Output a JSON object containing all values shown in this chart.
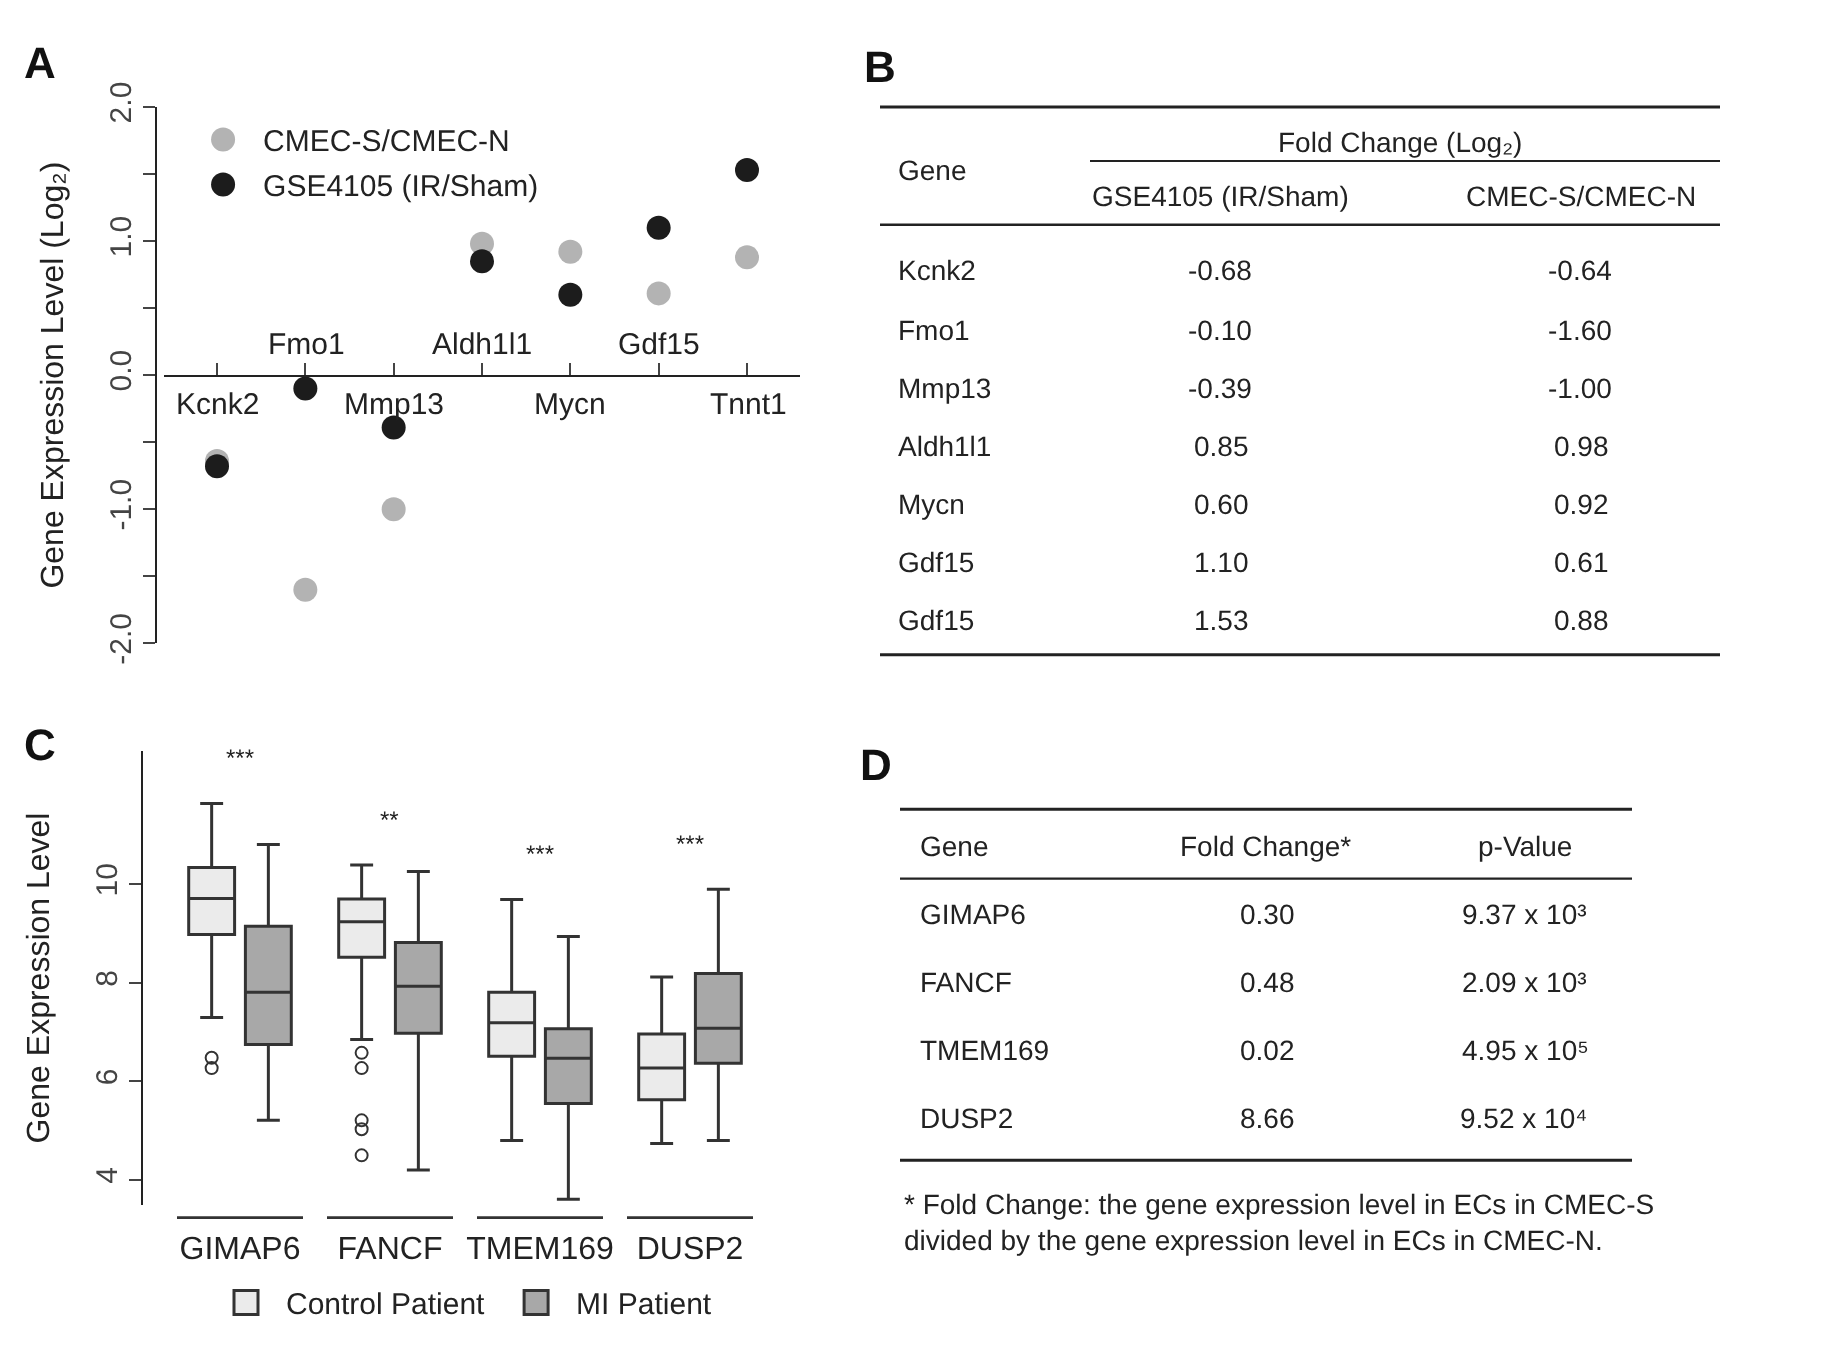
{
  "chart_data": [
    {
      "type": "scatter",
      "title": "A",
      "ylabel": "Gene Expression Level (Log₂)",
      "categories": [
        "Kcnk2",
        "Fmo1",
        "Mmp13",
        "Aldh1l1",
        "Mycn",
        "Gdf15",
        "Tnnt1"
      ],
      "series": [
        {
          "name": "CMEC-S/CMEC-N",
          "color": "#b3b3b3",
          "values": [
            -0.64,
            -1.6,
            -1.0,
            0.98,
            0.92,
            0.61,
            0.88
          ]
        },
        {
          "name": "GSE4105 (IR/Sham)",
          "color": "#1c1c1c",
          "values": [
            -0.68,
            -0.1,
            -0.39,
            0.85,
            0.6,
            1.1,
            1.53
          ]
        }
      ],
      "ylim": [
        -2,
        2
      ],
      "yticks": [
        {
          "value": -2,
          "label": "-2.0"
        },
        {
          "value": -1.5,
          "label": null
        },
        {
          "value": -1,
          "label": "-1.0"
        },
        {
          "value": -0.5,
          "label": null
        },
        {
          "value": 0,
          "label": "0.0"
        },
        {
          "value": 0.5,
          "label": null
        },
        {
          "value": 1,
          "label": "1.0"
        },
        {
          "value": 1.5,
          "label": null
        },
        {
          "value": 2,
          "label": "2.0"
        }
      ],
      "marker": "circle",
      "legend": "top left"
    },
    {
      "type": "other",
      "title": "B",
      "annotations": [
        "Gene",
        "Fold Change (Log₂)",
        "GSE4105 (IR/Sham)",
        "CMEC-S/CMEC-N",
        "Kcnk2",
        "-0.68",
        "-0.64",
        "Fmo1",
        "-0.10",
        "-1.60",
        "Mmp13",
        "-0.39",
        "-1.00",
        "Aldh1l1",
        "0.85",
        "0.98",
        "Mycn",
        "0.60",
        "0.92",
        "Gdf15",
        "1.10",
        "0.61",
        "Gdf15",
        "1.53",
        "0.88"
      ]
    },
    {
      "type": "box",
      "title": "C",
      "ylabel": "Gene Expression Level",
      "categories": [
        "GIMAP6",
        "FANCF",
        "TMEM169",
        "DUSP2"
      ],
      "series": [
        {
          "name": "Control Patient",
          "color": "#ebebeb",
          "boxes": [
            {
              "low": 7.3,
              "q1": 8.98,
              "median": 9.71,
              "q3": 10.34,
              "high": 11.64,
              "outliers": [
                6.48,
                6.27
              ]
            },
            {
              "low": 6.85,
              "q1": 8.52,
              "median": 9.24,
              "q3": 9.7,
              "high": 10.39,
              "outliers": [
                6.58,
                6.27,
                5.21,
                5.03,
                4.5
              ]
            },
            {
              "low": 4.8,
              "q1": 6.51,
              "median": 7.19,
              "q3": 7.81,
              "high": 9.69
            },
            {
              "low": 4.74,
              "q1": 5.63,
              "median": 6.27,
              "q3": 6.96,
              "high": 8.12
            }
          ]
        },
        {
          "name": "MI Patient",
          "color": "#a8a8a8",
          "boxes": [
            {
              "low": 5.21,
              "q1": 6.75,
              "median": 7.81,
              "q3": 9.15,
              "high": 10.81
            },
            {
              "low": 4.2,
              "q1": 6.98,
              "median": 7.93,
              "q3": 8.82,
              "high": 10.26
            },
            {
              "low": 3.61,
              "q1": 5.55,
              "median": 6.47,
              "q3": 7.07,
              "high": 8.94
            },
            {
              "low": 4.8,
              "q1": 6.37,
              "median": 7.08,
              "q3": 8.19,
              "high": 9.9
            }
          ]
        }
      ],
      "annotations": [
        "***",
        "**",
        "***",
        "***"
      ],
      "ylim": [
        3.5,
        12.7
      ],
      "yticks": [
        4,
        6,
        8,
        10
      ],
      "legend": "bottom"
    },
    {
      "type": "other",
      "title": "D",
      "annotations": [
        "Gene",
        "Fold Change*",
        "p-Value",
        "GIMAP6",
        "0.30",
        "9.37 x 10³",
        "FANCF",
        "0.48",
        "2.09 x 10³",
        "TMEM169",
        "0.02",
        "4.95 x 10⁵",
        "DUSP2",
        "8.66",
        "9.52 x 10⁴",
        "* Fold Change: the gene expression level in ECs in CMEC-S\ndivided by the gene expression level in ECs in CMEC-N."
      ]
    }
  ]
}
